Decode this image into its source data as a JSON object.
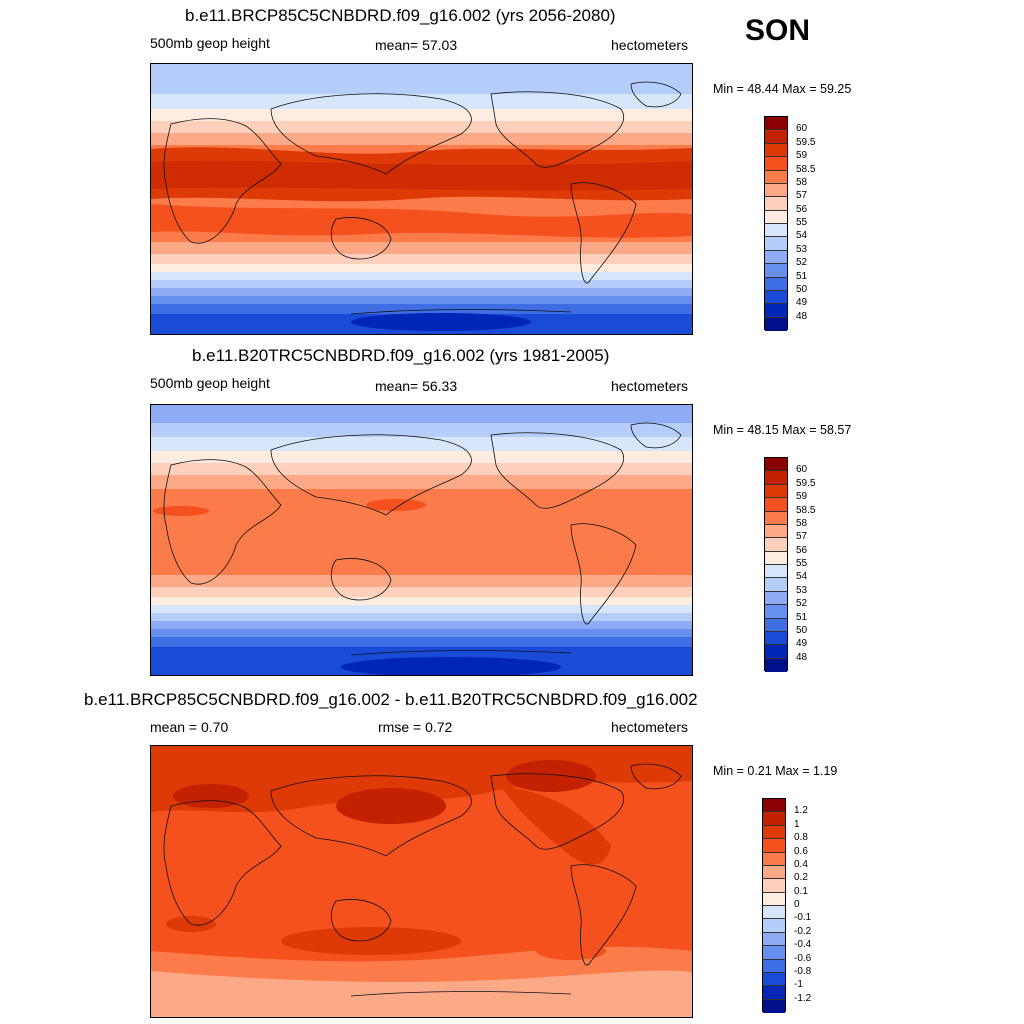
{
  "season": "SON",
  "panels": [
    {
      "title": "b.e11.BRCP85C5CNBDRD.f09_g16.002 (yrs 2056-2080)",
      "left_label": "500mb geop height",
      "center_label": "mean=  57.03",
      "right_label": "hectometers",
      "minmax": "Min =  48.44 Max =  59.25",
      "colorbar": {
        "labels": [
          "60",
          "59.5",
          "59",
          "58.5",
          "58",
          "57",
          "56",
          "55",
          "54",
          "53",
          "52",
          "51",
          "50",
          "49",
          "48"
        ],
        "colors": [
          "#8b0000",
          "#c32100",
          "#dd3a07",
          "#f4511e",
          "#fb7b4a",
          "#fca988",
          "#fdd0bb",
          "#fdecdf",
          "#d7e6fb",
          "#b5cdf9",
          "#8dacf4",
          "#6690f0",
          "#3e6de4",
          "#1a4bd6",
          "#0026b8",
          "#000f8a"
        ]
      }
    },
    {
      "title": "b.e11.B20TRC5CNBDRD.f09_g16.002 (yrs 1981-2005)",
      "left_label": "500mb geop height",
      "center_label": "mean=  56.33",
      "right_label": "hectometers",
      "minmax": "Min =  48.15 Max =  58.57",
      "colorbar": {
        "labels": [
          "60",
          "59.5",
          "59",
          "58.5",
          "58",
          "57",
          "56",
          "55",
          "54",
          "53",
          "52",
          "51",
          "50",
          "49",
          "48"
        ],
        "colors": [
          "#8b0000",
          "#c32100",
          "#dd3a07",
          "#f4511e",
          "#fb7b4a",
          "#fca988",
          "#fdd0bb",
          "#fdecdf",
          "#d7e6fb",
          "#b5cdf9",
          "#8dacf4",
          "#6690f0",
          "#3e6de4",
          "#1a4bd6",
          "#0026b8",
          "#000f8a"
        ]
      }
    },
    {
      "title": "b.e11.BRCP85C5CNBDRD.f09_g16.002 - b.e11.B20TRC5CNBDRD.f09_g16.002",
      "left_label": "mean =   0.70",
      "center_label": "rmse =   0.72",
      "right_label": "hectometers",
      "minmax": "Min =   0.21 Max =   1.19",
      "colorbar": {
        "labels": [
          "1.2",
          "1",
          "0.8",
          "0.6",
          "0.4",
          "0.2",
          "0.1",
          "0",
          "-0.1",
          "-0.2",
          "-0.4",
          "-0.6",
          "-0.8",
          "-1",
          "-1.2"
        ],
        "colors": [
          "#8b0000",
          "#c32100",
          "#dd3a07",
          "#f4511e",
          "#fb7b4a",
          "#fca988",
          "#fdd0bb",
          "#fdecdf",
          "#d7e6fb",
          "#b5cdf9",
          "#8dacf4",
          "#6690f0",
          "#3e6de4",
          "#1a4bd6",
          "#0026b8",
          "#000f8a"
        ]
      }
    }
  ]
}
